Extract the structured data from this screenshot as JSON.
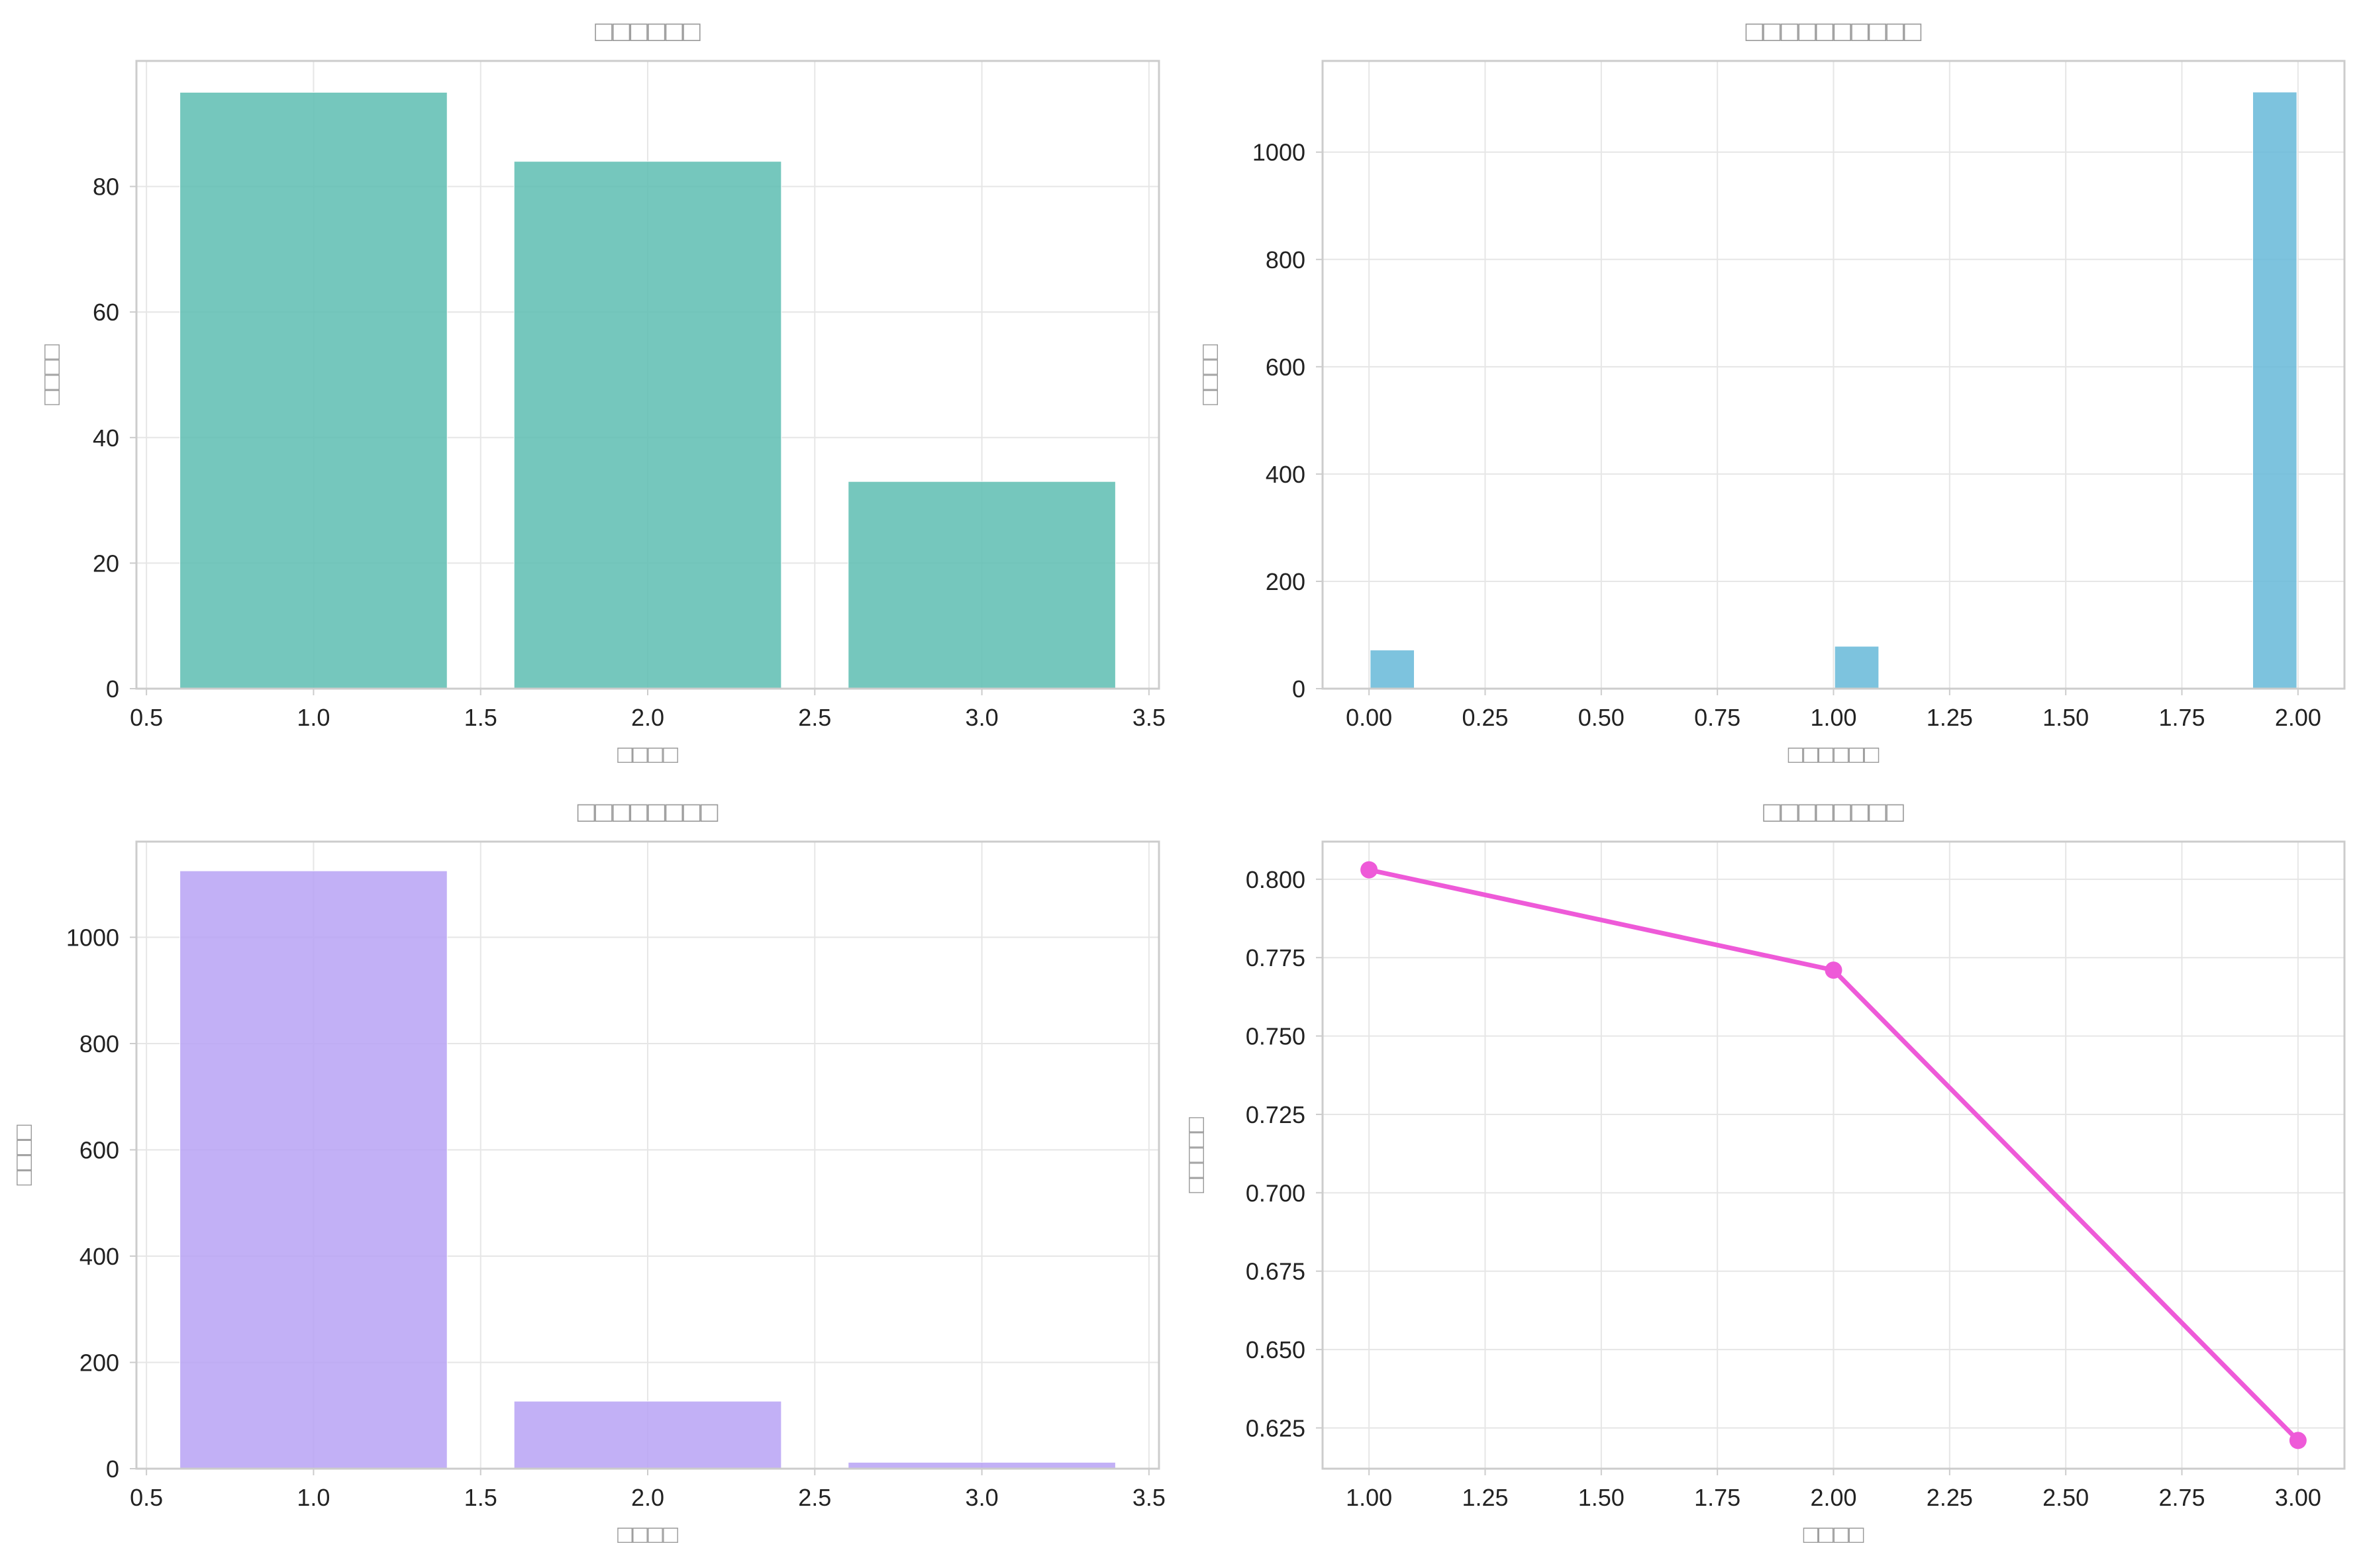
{
  "chart_data": [
    {
      "type": "bar",
      "title": "□□□□□□",
      "xlabel": "□□□□",
      "ylabel": "□□□□",
      "color": "#5dbdb1",
      "x": [
        1,
        2,
        3
      ],
      "values": [
        95,
        84,
        33
      ],
      "bar_width": 0.8,
      "xlim": [
        0.47,
        3.53
      ],
      "ylim": [
        0,
        100
      ],
      "xticks": [
        0.5,
        1.0,
        1.5,
        2.0,
        2.5,
        3.0,
        3.5
      ],
      "xtick_labels": [
        "0.5",
        "1.0",
        "1.5",
        "2.0",
        "2.5",
        "3.0",
        "3.5"
      ],
      "yticks": [
        0,
        20,
        40,
        60,
        80
      ],
      "ytick_labels": [
        "0",
        "20",
        "40",
        "60",
        "80"
      ],
      "grid": true
    },
    {
      "type": "bar",
      "title": "□□□□□□□□□□",
      "xlabel": "□□□□□□",
      "ylabel": "□□□□",
      "color": "#66b8d8",
      "x": [
        0.05,
        1.05,
        1.95
      ],
      "values": [
        72,
        79,
        1112
      ],
      "bar_width": 0.095,
      "xlim": [
        -0.1,
        2.1
      ],
      "ylim": [
        0,
        1170
      ],
      "xticks": [
        0.0,
        0.25,
        0.5,
        0.75,
        1.0,
        1.25,
        1.5,
        1.75,
        2.0
      ],
      "xtick_labels": [
        "0.00",
        "0.25",
        "0.50",
        "0.75",
        "1.00",
        "1.25",
        "1.50",
        "1.75",
        "2.00"
      ],
      "yticks": [
        0,
        200,
        400,
        600,
        800,
        1000
      ],
      "ytick_labels": [
        "0",
        "200",
        "400",
        "600",
        "800",
        "1000"
      ],
      "grid": true
    },
    {
      "type": "bar",
      "title": "□□□□□□□□",
      "xlabel": "□□□□",
      "ylabel": "□□□□",
      "color": "#b7a2f5",
      "x": [
        1,
        2,
        3
      ],
      "values": [
        1125,
        127,
        12
      ],
      "bar_width": 0.8,
      "xlim": [
        0.47,
        3.53
      ],
      "ylim": [
        0,
        1180
      ],
      "xticks": [
        0.5,
        1.0,
        1.5,
        2.0,
        2.5,
        3.0,
        3.5
      ],
      "xtick_labels": [
        "0.5",
        "1.0",
        "1.5",
        "2.0",
        "2.5",
        "3.0",
        "3.5"
      ],
      "yticks": [
        0,
        200,
        400,
        600,
        800,
        1000
      ],
      "ytick_labels": [
        "0",
        "200",
        "400",
        "600",
        "800",
        "1000"
      ],
      "grid": true
    },
    {
      "type": "line",
      "title": "□□□□□□□□",
      "xlabel": "□□□□",
      "ylabel": "□□□□□",
      "color": "#ee5ad8",
      "x": [
        1.0,
        2.0,
        3.0
      ],
      "values": [
        0.803,
        0.771,
        0.621
      ],
      "xlim": [
        0.9,
        3.1
      ],
      "ylim": [
        0.612,
        0.812
      ],
      "xticks": [
        1.0,
        1.25,
        1.5,
        1.75,
        2.0,
        2.25,
        2.5,
        2.75,
        3.0
      ],
      "xtick_labels": [
        "1.00",
        "1.25",
        "1.50",
        "1.75",
        "2.00",
        "2.25",
        "2.50",
        "2.75",
        "3.00"
      ],
      "yticks": [
        0.625,
        0.65,
        0.675,
        0.7,
        0.725,
        0.75,
        0.775,
        0.8
      ],
      "ytick_labels": [
        "0.625",
        "0.650",
        "0.675",
        "0.700",
        "0.725",
        "0.750",
        "0.775",
        "0.800"
      ],
      "grid": true
    }
  ]
}
